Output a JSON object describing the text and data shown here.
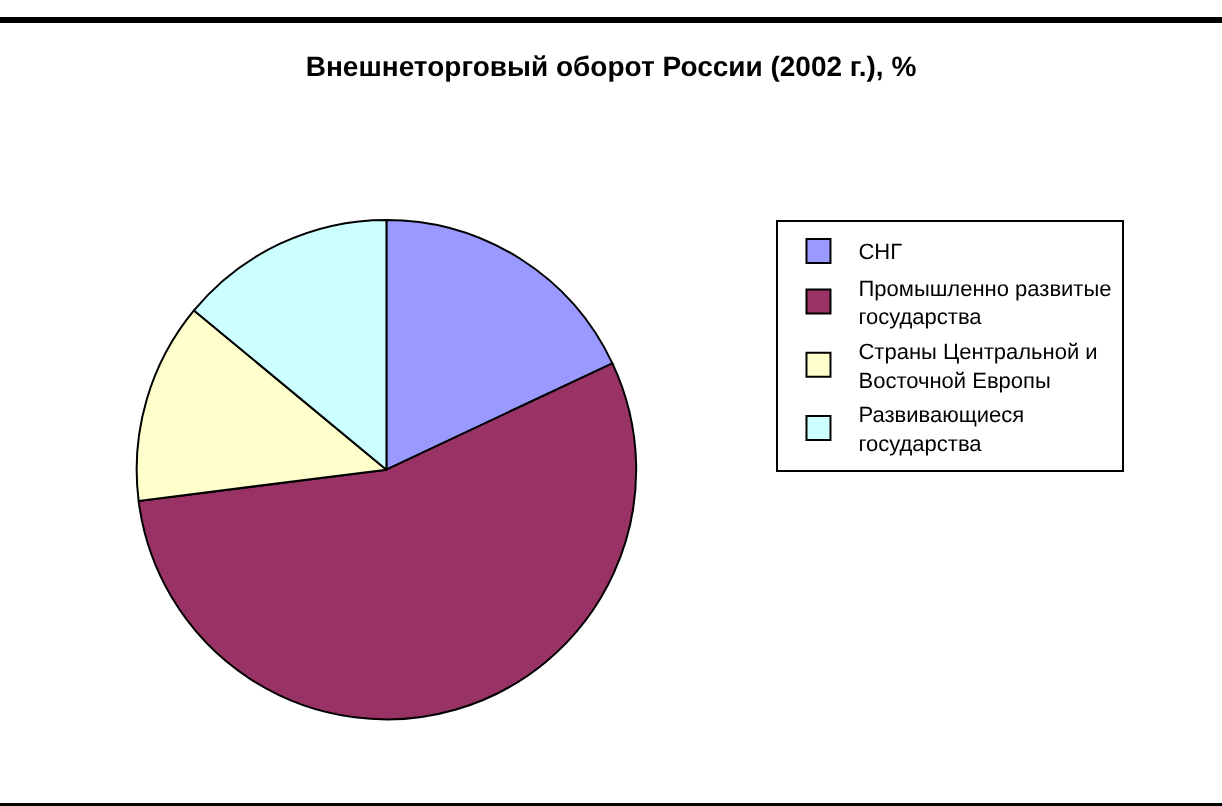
{
  "chart_data": {
    "type": "pie",
    "title": "Внешнеторговый оборот России (2002 г.), %",
    "categories": [
      "СНГ",
      "Промышленно развитые государства",
      "Страны Центральной и Восточной Европы",
      "Развивающиеся государства"
    ],
    "values": [
      18,
      55,
      13,
      14
    ],
    "colors": [
      "#9999ff",
      "#993366",
      "#ffffcc",
      "#ccffff"
    ],
    "legend": "right"
  }
}
